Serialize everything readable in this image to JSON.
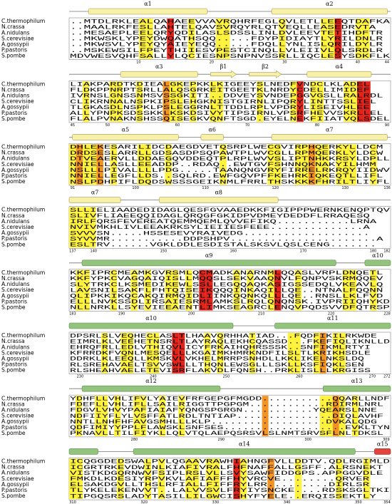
{
  "blocks": [
    {
      "structure": [
        "α1",
        "α2"
      ],
      "species": [
        "C.thermophilum",
        "N.crassa",
        "A.nidulans",
        "S.cerevisiae",
        "A.gossypii",
        "P.pastoris",
        "S.pombe"
      ],
      "sequences": [
        "..MTDLRKLEALQAHAEEVVAVRQHRFEGLQVLETLLEEQTDAFKA",
        "..MAALRKFESLLAHTELQAVSVRQYRLQTVEQLLEASEDRVTA",
        "..MESAEPLEELQRYQDILASLSDSSLINLDVLEEVTETIHDFTR",
        "..MKWSKLYPEYDWQATHSQQ.....FDYPIDIAYTLYRILDNLR",
        "..MKWSVLYPEYQYAIEYEQQ.....FDQLLYNLISLQRILDYLR",
        "..MSKEWSILFPEYTHIIESVPESTCINQLLVLEIIVLQLSRDLR",
        "MDVWESVQHFSALLYLQCIESNPSNPNVSSRLLIQCLESYSDKFLK"
      ],
      "ruler": [
        10,
        20,
        30,
        40,
        44
      ]
    },
    {
      "structure": [
        "α3",
        "β1",
        "β2",
        "α4"
      ],
      "species": [
        "C.thermophilum",
        "N.crassa",
        "A.nidulans",
        "S.cerevisiae",
        "A.gossypii",
        "P.pastoris",
        "S.pombe"
      ],
      "sequences": [
        "LIAKPARDTKDIEALGKEPKKLKIGEEYSLNEDFVNDCLKLADEL",
        "FLDKPPNRPTSRLLALQSGRKEITGEETKLNRDYCDELLIMIDEF",
        "IVRNSLGNSSNMSVSSGKITI..DDVEYSVNDEPGGVGSLLRALRDL",
        "CLIKRNNALNSPKIPSLEHGKNISTGIRNLIPQRYLINTTSSLIEL",
        "TLGKASDLNSPKLPSLEGGRNLTTDDLRPLVPDRYLISEIVHLEE",
        "ALLYPNPKSDSSKKLKSKDSIVYTIPSIRNLVPSRFHEVVSKRLLEL",
        "FLALPVNAKNSHSSQISEGKVQNFTSGD.EYELNEKFIIATVQLSDEL"
      ],
      "ruler": [
        45,
        50,
        60,
        70,
        80,
        90
      ]
    },
    {
      "structure": [
        "α5",
        "α6",
        "α7"
      ],
      "species": [
        "C.thermophilum",
        "N.crassa",
        "A.nidulans",
        "S.cerevisiae",
        "A.gossypii",
        "P.pastoris",
        "S.pombe"
      ],
      "sequences": [
        "DHLEKESARILIDCDAEGDVETQSRPLWECGVIRPHQERKYLLDCM",
        "DRDSESLARRLLGDSASDPSQPAWTPLWVCGLLRPMQERKLYLDCW",
        "DTVEAERVLLDDAEGQVDDEQTPLRPLWVVSLIPTNHKKRSYLDPLL",
        "NNIELLASLLEEADDP..RDAQ..EWTGVFSHNNQKNAKYILHMM",
        "NSLLLPIVALLLLPDG.....TAANQNGVRYFIRRELRKRQYIIDWV",
        "NNIELLEGFLLDS..SQLRD.EWFGQVPFFKEHRKIQKEQTLLIFL",
        "NSLPDHPIFLDQDSWSSSGEIKNMLFRRLTHSKKKKFHRILTLIYFL"
      ],
      "ruler": [
        91,
        100,
        110,
        120,
        130,
        136
      ]
    },
    {
      "structure": [
        "α7",
        "α8"
      ],
      "species": [
        "C.thermophilum",
        "N.crassa",
        "A.nidulans",
        "S.cerevisiae",
        "A.gossypii",
        "P.pastoris",
        "S.pombe"
      ],
      "sequences": [
        "SLLIELIAADEDIDAGLQESFGVAAEDKKFIGIPPPWERNKENQPTQV",
        "SLIVFLIAEEQQIDAGLQRQGFGKIDPVDMEYDEDDFLRRAQESQ",
        "IRLFQRSFEVEREATQEMMQEMLQVVEFIKQ...........LRNA",
        "NVIVMKHLIVLEEAKRKSYLIEIIESFEEE..............A",
        "SVVVSN.....HSSESEVYRAIVEDG...................",
        "SYVVMR...........DDPSHPV......................A",
        "ESLTRV......VGKLDDLESDISTALSKSVLQSLCENG......."
      ],
      "ruler": [
        137,
        140,
        150,
        160,
        170,
        180,
        182
      ]
    },
    {
      "structure": [
        "α9",
        "α10"
      ],
      "species": [
        "C.thermophilum",
        "N.crassa",
        "A.nidulans",
        "S.cerevisiae",
        "A.gossypii",
        "P.pastoris",
        "S.pombe"
      ],
      "sequences": [
        "KKFIPRCMEAMKGVRSMLQCMADKANARNMLQQASLVRPLDNQETL",
        "KKFYPKCVAGQAIQISLLMQQSLSEKVAAQNVLFQNPVSKRMQQEV",
        "SLYTRKCLKSMEDIKEWLSSLLEGQQAQKASIGSSEDQLVKEAVLQ",
        "LAVSNILSAKFLFHTQISEIKQQQINKAQILLQE..NTNALFQQNN",
        "QLIPKKIKQCAKQIRMQIDLIINKQQNKQLLLQE..RNSLLKLFVD",
        "ELLLNVKSSDLIRSAIESRMLAMKSLRQLQNQNSK.IVPRIIQHYKD",
        "NLLNRKLLSYEVIEEAENTLIMKSEAGRCLENQVPQDSVVDFQTRSP"
      ],
      "ruler": [
        183,
        190,
        200,
        210,
        220,
        228
      ]
    },
    {
      "structure": [
        "α10",
        "α11"
      ],
      "species": [
        "C.thermophilum",
        "N.crassa",
        "A.nidulans",
        "S.cerevisiae",
        "A.gossypii",
        "P.pastoris",
        "S.pombe"
      ],
      "sequences": [
        "DPSRLSLVEQHECLASLTLHAAVQRHHATIAD...FQDFIKILRKWDE",
        "EIMRLKLVEEHETNSRLTLAYRAQLEKHCQASSD...FKEFIQLIKNLLD",
        "EHRQFRLLEDLVTHIQVLICYFRKAIHQHRSSSK..SNFIKMLRTYI",
        "KFRRDKFVQNLMESQELLLKGAIMKHMRKNDFILSLTLKRIKHSDLE",
        "DDRKLKLEEQLLKMSKVLVKHELMRRPSNHDLLKKLIKELNKSLDQ",
        "RLSREHAVAELTSVVSWLLLTHQNLEWSGLLLSKLLKSFIQKLSEN",
        "RLSHEAHVAELETEVISRFLAKVDLFQNSH..PRKLISLLLKRGISS"
      ],
      "ruler": [
        230,
        240,
        250,
        260,
        270,
        272
      ]
    },
    {
      "structure": [
        "α12",
        "α13"
      ],
      "species": [
        "C.thermophilum",
        "N.crassa",
        "A.nidulans",
        "S.cerevisiae",
        "A.gossypii",
        "P.pastoris",
        "S.pombe"
      ],
      "sequences": [
        "YDHFLLVHLIFVLYAIEVFRFGEPGFMGDD...........QQARLLNDF",
        "FDEFLLVHLIFLLSAILRIGGTTPGPGM............RDIRMLNRL",
        "FDGVLVHVYPAFIAIAFYQNGSPGRGN...........YQEARSLNNE",
        "NDFIIYFLYLVSFFATLRDLTNTIAP...............DIQLAVHF",
        "NNTLLNHFHFAVGSMHLLLKLP..................DVKALQDG",
        "QDFIMIYYPPLFLAWSKLSNFSES...................EVKLTYN",
        "PKNAVLLTILFIYKLLQLVTQLAEPQSRSVLSLNMTSRVSFLNLTDKSL"
      ],
      "ruler": [
        280,
        290,
        300,
        309
      ]
    },
    {
      "structure": [
        "α14",
        "α15"
      ],
      "species": [
        "C.thermophilum",
        "N.crassa",
        "A.nidulans",
        "S.cerevisiae",
        "A.gossypii",
        "P.pastoris",
        "S.pombe"
      ],
      "sequences": [
        "ICQGGDEDSWALPVLQGAAVRAWHIAHNGFVLLDDTV.QDLRGIMLD",
        "ICGRTRKEVDWINLKIAFIVRALFHFNAFFALLGSFF.ALRSNEKT",
        "VISTKDGQRNWVFSIPLRSLVLLSVYSAWFIDDGPS.APPGGVDLE",
        "FMKDLKDESIYRPVKVLAFIAFFFHYVRCVE........QRVER",
        "ELSAKDGVLLTHSLRFIALLFIFFRYLRR.........DIRLSR",
        "TLYKELEKENVVT..LALVVSVLFRYIYSNCKE....RDSKSGLTKI",
        "TIPGQSRSLADYTASILLILGWCISHYFYELE..ERQISSEKTLY"
      ],
      "ruler": [
        310,
        320,
        330,
        340,
        350,
        354
      ]
    }
  ]
}
